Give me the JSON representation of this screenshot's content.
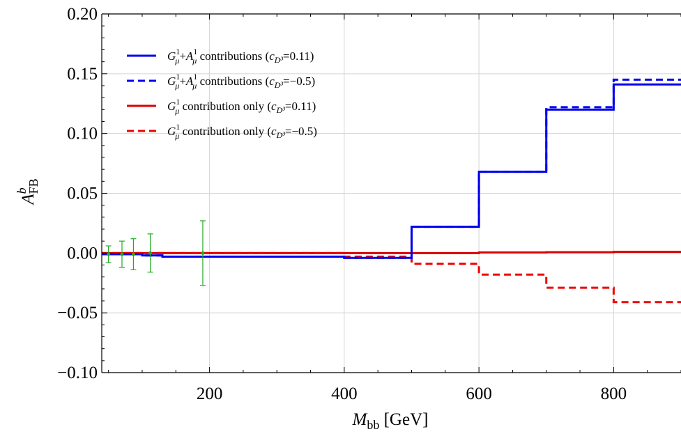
{
  "chart_data": {
    "type": "line",
    "xlabel": "M_bb [GeV]",
    "xlabel_main": "M",
    "xlabel_sub": "bb",
    "xlabel_unit": " [GeV]",
    "ylabel_main": "A",
    "ylabel_sup": "b",
    "ylabel_sub": "FB",
    "xlim": [
      40,
      900
    ],
    "ylim": [
      -0.1,
      0.2
    ],
    "grid": true,
    "legend_position": "top-left",
    "x_ticks": [
      {
        "value": 200,
        "label": "200"
      },
      {
        "value": 400,
        "label": "400"
      },
      {
        "value": 600,
        "label": "600"
      },
      {
        "value": 800,
        "label": "800"
      }
    ],
    "y_ticks": [
      {
        "value": -0.1,
        "label": "−0.10"
      },
      {
        "value": -0.05,
        "label": "−0.05"
      },
      {
        "value": 0.0,
        "label": "0.00"
      },
      {
        "value": 0.05,
        "label": "0.05"
      },
      {
        "value": 0.1,
        "label": "0.10"
      },
      {
        "value": 0.15,
        "label": "0.15"
      },
      {
        "value": 0.2,
        "label": "0.20"
      }
    ],
    "series": [
      {
        "name": "G¹μ+A¹μ contributions (cD³=0.11)",
        "legend_parts": [
          "G",
          "1",
          "μ",
          "+",
          "A",
          "1",
          "μ",
          " contributions (",
          "c",
          "D³",
          "=0.11)"
        ],
        "color": "#0000ee",
        "dash": "solid",
        "step": true,
        "x": [
          40,
          70,
          100,
          130,
          250,
          400,
          500,
          600,
          700,
          800,
          900
        ],
        "y": [
          -0.001,
          -0.001,
          -0.002,
          -0.003,
          -0.003,
          -0.004,
          0.022,
          0.068,
          0.12,
          0.141,
          0.087
        ]
      },
      {
        "name": "G¹μ+A¹μ contributions (cD³=−0.5)",
        "legend_parts": [
          "G",
          "1",
          "μ",
          "+",
          "A",
          "1",
          "μ",
          " contributions (",
          "c",
          "D³",
          "=−0.5)"
        ],
        "color": "#0000ee",
        "dash": "dashed",
        "step": true,
        "x": [
          40,
          70,
          100,
          130,
          250,
          400,
          500,
          600,
          700,
          800,
          900
        ],
        "y": [
          -0.001,
          -0.001,
          -0.002,
          -0.003,
          -0.003,
          -0.004,
          0.022,
          0.068,
          0.122,
          0.145,
          0.09
        ]
      },
      {
        "name": "G¹μ contribution only (cD³=0.11)",
        "legend_parts": [
          "G",
          "1",
          "μ",
          "",
          "",
          "",
          "",
          " contribution only (",
          "c",
          "D³",
          "=0.11)"
        ],
        "color": "#dd0000",
        "dash": "solid",
        "step": true,
        "x": [
          40,
          400,
          500,
          600,
          700,
          800,
          900
        ],
        "y": [
          0.0,
          0.0,
          0.0,
          0.0005,
          0.0007,
          0.001,
          0.001
        ]
      },
      {
        "name": "G¹μ contribution only (cD³=−0.5)",
        "legend_parts": [
          "G",
          "1",
          "μ",
          "",
          "",
          "",
          "",
          " contribution only (",
          "c",
          "D³",
          "=−0.5)"
        ],
        "color": "#ee0000",
        "dash": "dashed",
        "step": true,
        "x": [
          40,
          400,
          500,
          600,
          700,
          800,
          900
        ],
        "y": [
          0.0,
          -0.003,
          -0.009,
          -0.018,
          -0.029,
          -0.041,
          -0.041
        ]
      }
    ],
    "error_bars": {
      "color": "#22aa22",
      "points": [
        {
          "x": 50,
          "y": -0.001,
          "err": 0.007
        },
        {
          "x": 70,
          "y": -0.001,
          "err": 0.011
        },
        {
          "x": 87,
          "y": -0.001,
          "err": 0.013
        },
        {
          "x": 112,
          "y": 0.0,
          "err": 0.016
        },
        {
          "x": 190,
          "y": 0.0,
          "err": 0.027
        }
      ]
    }
  }
}
